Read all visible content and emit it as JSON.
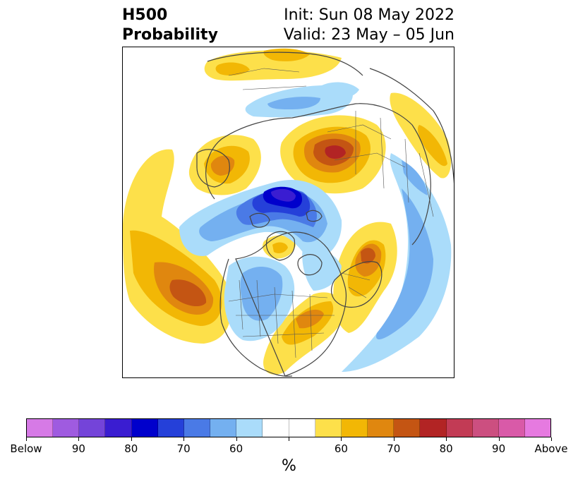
{
  "title": {
    "line1": "H500",
    "line2": "Probability",
    "init": "Init: Sun 08 May 2022",
    "valid": "Valid: 23 May – 05 Jun"
  },
  "colorbar": {
    "unit": "%",
    "colors": [
      "#d67ae6",
      "#9f5be0",
      "#7444d9",
      "#3a1dd1",
      "#0000cc",
      "#2540d9",
      "#4a7ae6",
      "#74b0f0",
      "#aadcfa",
      "#ffffff",
      "#ffffff",
      "#fde04a",
      "#f2b705",
      "#e0870f",
      "#c45513",
      "#b22424",
      "#c23b55",
      "#cc4f80",
      "#d95aa8",
      "#e67ae0"
    ],
    "tick_labels": [
      "Below",
      "90",
      "80",
      "70",
      "60",
      "",
      "60",
      "70",
      "80",
      "90",
      "Above"
    ]
  },
  "map": {
    "projection": "north-polar-stereographic",
    "colors": {
      "yellow": "#fde04a",
      "gold": "#f2b705",
      "orange": "#e0870f",
      "dark_orange": "#c45513",
      "red": "#b22424",
      "light_blue": "#aadcfa",
      "blue": "#74b0f0",
      "mid_blue": "#4a7ae6",
      "deep_blue": "#2540d9",
      "navy": "#0000cc",
      "purple_blue": "#3a1dd1",
      "coast": "#444444"
    }
  }
}
